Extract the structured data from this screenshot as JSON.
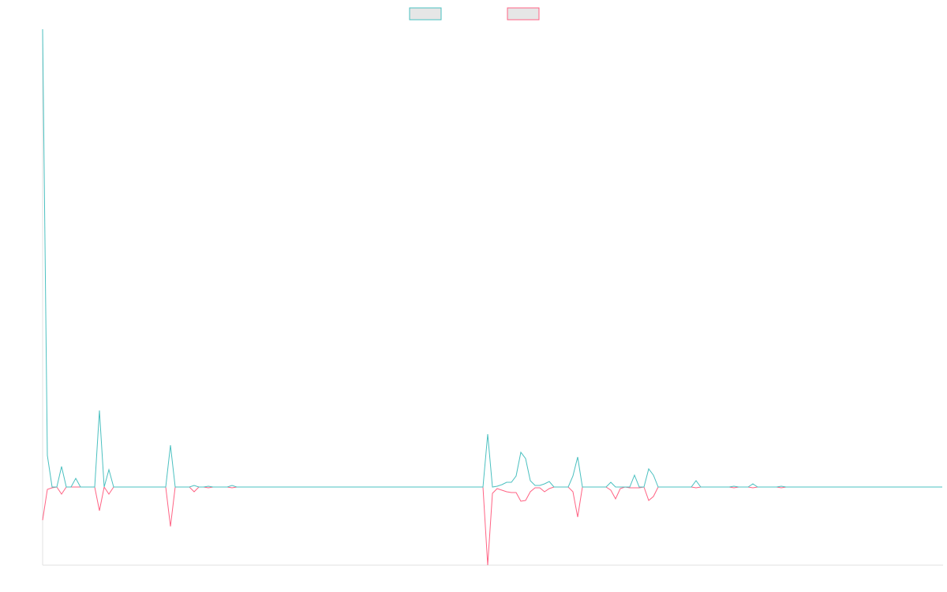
{
  "chart_data": {
    "type": "line",
    "categories": [
      null,
      null,
      null,
      null,
      null,
      null,
      null,
      null,
      null,
      null,
      null,
      null,
      null,
      null,
      null,
      null,
      null,
      null,
      null,
      null,
      null,
      null,
      null,
      null,
      null,
      null,
      null,
      null,
      null,
      null,
      null,
      null,
      null,
      null,
      null,
      null,
      null,
      null,
      null,
      null,
      null,
      null,
      null,
      null,
      null,
      null,
      null,
      null,
      null,
      null,
      null,
      null,
      null,
      null,
      null,
      null,
      null,
      null,
      null,
      null,
      null,
      null,
      null,
      null,
      null,
      null,
      null,
      null,
      null,
      null,
      null,
      null,
      null,
      null,
      null,
      null,
      null,
      null,
      null,
      null,
      null,
      null,
      null,
      null,
      null,
      null,
      null,
      null,
      null,
      null,
      null,
      null,
      null,
      null,
      null,
      null,
      null,
      null,
      null,
      null,
      null,
      null,
      null,
      null,
      null,
      null,
      null,
      null,
      null,
      null,
      null,
      null,
      null,
      null,
      null,
      null,
      null,
      null,
      null,
      null,
      null,
      null,
      null,
      null,
      null,
      null,
      null,
      null,
      null,
      null,
      null,
      null,
      null,
      null,
      null,
      null,
      null,
      null,
      null,
      null,
      null,
      null,
      null,
      null,
      null,
      null,
      null,
      null,
      null,
      null,
      null,
      null,
      null,
      null,
      null,
      null,
      null,
      null,
      null,
      null,
      null,
      null,
      null,
      null,
      null,
      null,
      null,
      null,
      null,
      null,
      null,
      null,
      null,
      null,
      null,
      null,
      null,
      null,
      null,
      null,
      null,
      null,
      null,
      null,
      null,
      null,
      null,
      null,
      null,
      null,
      null
    ],
    "series": [
      {
        "color": "#4bc0c0",
        "values": [
          580,
          40,
          0,
          0,
          26,
          0,
          0,
          11,
          0,
          0,
          0,
          0,
          97,
          0,
          22,
          0,
          0,
          0,
          0,
          0,
          0,
          0,
          0,
          0,
          0,
          0,
          0,
          53,
          0,
          0,
          0,
          0,
          2,
          0,
          0,
          1,
          0,
          0,
          0,
          0,
          2,
          0,
          0,
          0,
          0,
          0,
          0,
          0,
          0,
          0,
          0,
          0,
          0,
          0,
          0,
          0,
          0,
          0,
          0,
          0,
          0,
          0,
          0,
          0,
          0,
          0,
          0,
          0,
          0,
          0,
          0,
          0,
          0,
          0,
          0,
          0,
          0,
          0,
          0,
          0,
          0,
          0,
          0,
          0,
          0,
          0,
          0,
          0,
          0,
          0,
          0,
          0,
          0,
          0,
          67,
          0,
          1,
          3,
          6,
          6,
          14,
          44,
          36,
          8,
          2,
          2,
          4,
          7,
          0,
          0,
          0,
          0,
          14,
          38,
          0,
          0,
          0,
          0,
          0,
          0,
          6,
          0,
          0,
          0,
          0,
          15,
          0,
          0,
          23,
          15,
          0,
          0,
          0,
          0,
          0,
          0,
          0,
          0,
          8,
          0,
          0,
          0,
          0,
          0,
          0,
          0,
          1,
          0,
          0,
          0,
          4,
          0,
          0,
          0,
          0,
          0,
          1,
          0,
          0,
          0,
          0,
          0,
          0,
          0,
          0,
          0,
          0,
          0,
          0,
          0,
          0,
          0,
          0,
          0,
          0,
          0,
          0,
          0,
          0,
          0,
          0,
          0,
          0,
          0,
          0,
          0,
          0,
          0,
          0,
          0,
          0
        ]
      },
      {
        "color": "#ff6384",
        "values": [
          -42,
          -3,
          -1,
          0,
          -9,
          0,
          0,
          0,
          0,
          0,
          0,
          0,
          -30,
          0,
          -9,
          0,
          0,
          0,
          0,
          0,
          0,
          0,
          0,
          0,
          0,
          0,
          0,
          -50,
          0,
          0,
          0,
          0,
          -6,
          0,
          0,
          -1,
          0,
          0,
          0,
          0,
          -1,
          0,
          0,
          0,
          0,
          0,
          0,
          0,
          0,
          0,
          0,
          0,
          0,
          0,
          0,
          0,
          0,
          0,
          0,
          0,
          0,
          0,
          0,
          0,
          0,
          0,
          0,
          0,
          0,
          0,
          0,
          0,
          0,
          0,
          0,
          0,
          0,
          0,
          0,
          0,
          0,
          0,
          0,
          0,
          0,
          0,
          0,
          0,
          0,
          0,
          0,
          0,
          0,
          0,
          -99,
          -8,
          -2,
          -4,
          -6,
          -7,
          -7,
          -18,
          -17,
          -6,
          -1,
          -1,
          -6,
          -2,
          0,
          0,
          0,
          0,
          -6,
          -38,
          0,
          0,
          0,
          0,
          0,
          0,
          -4,
          -15,
          -2,
          0,
          -1,
          -1,
          -1,
          0,
          -17,
          -12,
          0,
          0,
          0,
          0,
          0,
          0,
          0,
          0,
          -1,
          0,
          0,
          0,
          0,
          0,
          0,
          0,
          -1,
          0,
          0,
          0,
          -1,
          0,
          0,
          0,
          0,
          0,
          -1,
          0,
          0,
          0,
          0,
          0,
          0,
          0,
          0,
          0,
          0,
          0,
          0,
          0,
          0,
          0,
          0,
          0,
          0,
          0,
          0,
          0,
          0,
          0,
          0,
          0,
          0,
          0,
          0,
          0,
          0,
          0,
          0,
          0,
          0
        ]
      }
    ],
    "ylim": [
      -99,
      580
    ],
    "legend": "top"
  }
}
